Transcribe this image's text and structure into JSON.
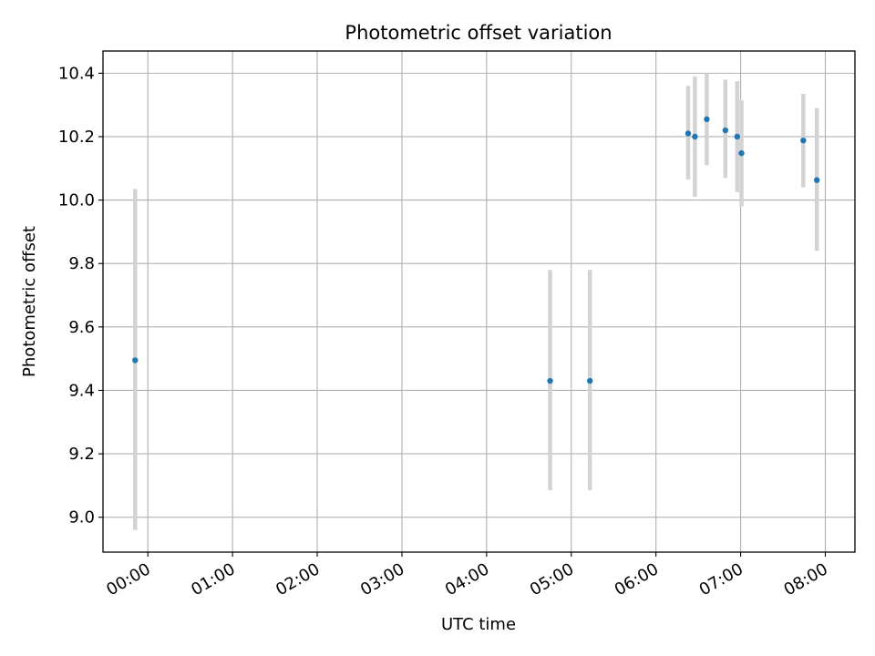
{
  "chart_data": {
    "type": "scatter",
    "title": "Photometric offset variation",
    "xlabel": "UTC time",
    "ylabel": "Photometric offset",
    "x_unit": "hours UTC",
    "xlim": [
      -0.53,
      8.35
    ],
    "ylim": [
      8.89,
      10.47
    ],
    "x_ticks": [
      {
        "value": 0,
        "label": "00:00"
      },
      {
        "value": 1,
        "label": "01:00"
      },
      {
        "value": 2,
        "label": "02:00"
      },
      {
        "value": 3,
        "label": "03:00"
      },
      {
        "value": 4,
        "label": "04:00"
      },
      {
        "value": 5,
        "label": "05:00"
      },
      {
        "value": 6,
        "label": "06:00"
      },
      {
        "value": 7,
        "label": "07:00"
      },
      {
        "value": 8,
        "label": "08:00"
      }
    ],
    "y_ticks": [
      {
        "value": 9.0,
        "label": "9.0"
      },
      {
        "value": 9.2,
        "label": "9.2"
      },
      {
        "value": 9.4,
        "label": "9.4"
      },
      {
        "value": 9.6,
        "label": "9.6"
      },
      {
        "value": 9.8,
        "label": "9.8"
      },
      {
        "value": 10.0,
        "label": "10.0"
      },
      {
        "value": 10.2,
        "label": "10.2"
      },
      {
        "value": 10.4,
        "label": "10.4"
      }
    ],
    "grid": true,
    "point_color": "#1f77b4",
    "errorbar_color": "#d3d3d3",
    "points": [
      {
        "x": -0.15,
        "y": 9.495,
        "ylo": 8.96,
        "yhi": 10.035
      },
      {
        "x": 4.75,
        "y": 9.43,
        "ylo": 9.085,
        "yhi": 9.78
      },
      {
        "x": 5.22,
        "y": 9.43,
        "ylo": 9.085,
        "yhi": 9.78
      },
      {
        "x": 6.38,
        "y": 10.21,
        "ylo": 10.065,
        "yhi": 10.36
      },
      {
        "x": 6.46,
        "y": 10.2,
        "ylo": 10.01,
        "yhi": 10.39
      },
      {
        "x": 6.6,
        "y": 10.255,
        "ylo": 10.11,
        "yhi": 10.4
      },
      {
        "x": 6.82,
        "y": 10.22,
        "ylo": 10.07,
        "yhi": 10.38
      },
      {
        "x": 6.96,
        "y": 10.2,
        "ylo": 10.025,
        "yhi": 10.375
      },
      {
        "x": 7.01,
        "y": 10.148,
        "ylo": 9.98,
        "yhi": 10.315
      },
      {
        "x": 7.74,
        "y": 10.188,
        "ylo": 10.04,
        "yhi": 10.335
      },
      {
        "x": 7.9,
        "y": 10.063,
        "ylo": 9.84,
        "yhi": 10.29
      }
    ]
  }
}
